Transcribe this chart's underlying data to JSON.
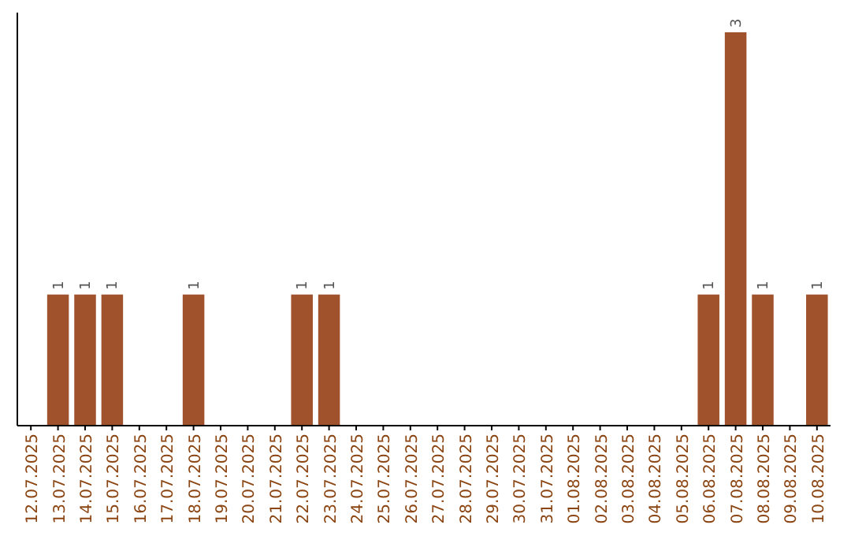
{
  "chart_data": {
    "type": "bar",
    "categories": [
      "12.07.2025",
      "13.07.2025",
      "14.07.2025",
      "15.07.2025",
      "16.07.2025",
      "17.07.2025",
      "18.07.2025",
      "19.07.2025",
      "20.07.2025",
      "21.07.2025",
      "22.07.2025",
      "23.07.2025",
      "24.07.2025",
      "25.07.2025",
      "26.07.2025",
      "27.07.2025",
      "28.07.2025",
      "29.07.2025",
      "30.07.2025",
      "31.07.2025",
      "01.08.2025",
      "02.08.2025",
      "03.08.2025",
      "04.08.2025",
      "05.08.2025",
      "06.08.2025",
      "07.08.2025",
      "08.08.2025",
      "09.08.2025",
      "10.08.2025"
    ],
    "values": [
      0,
      1,
      1,
      1,
      0,
      0,
      1,
      0,
      0,
      0,
      1,
      1,
      0,
      0,
      0,
      0,
      0,
      0,
      0,
      0,
      0,
      0,
      0,
      0,
      0,
      1,
      3,
      1,
      0,
      1
    ],
    "value_labels": [
      null,
      "1",
      "1",
      "1",
      null,
      null,
      "1",
      null,
      null,
      null,
      "1",
      "1",
      null,
      null,
      null,
      null,
      null,
      null,
      null,
      null,
      null,
      null,
      null,
      null,
      null,
      "1",
      "3",
      "1",
      null,
      "1"
    ],
    "color": "#a0522d"
  }
}
